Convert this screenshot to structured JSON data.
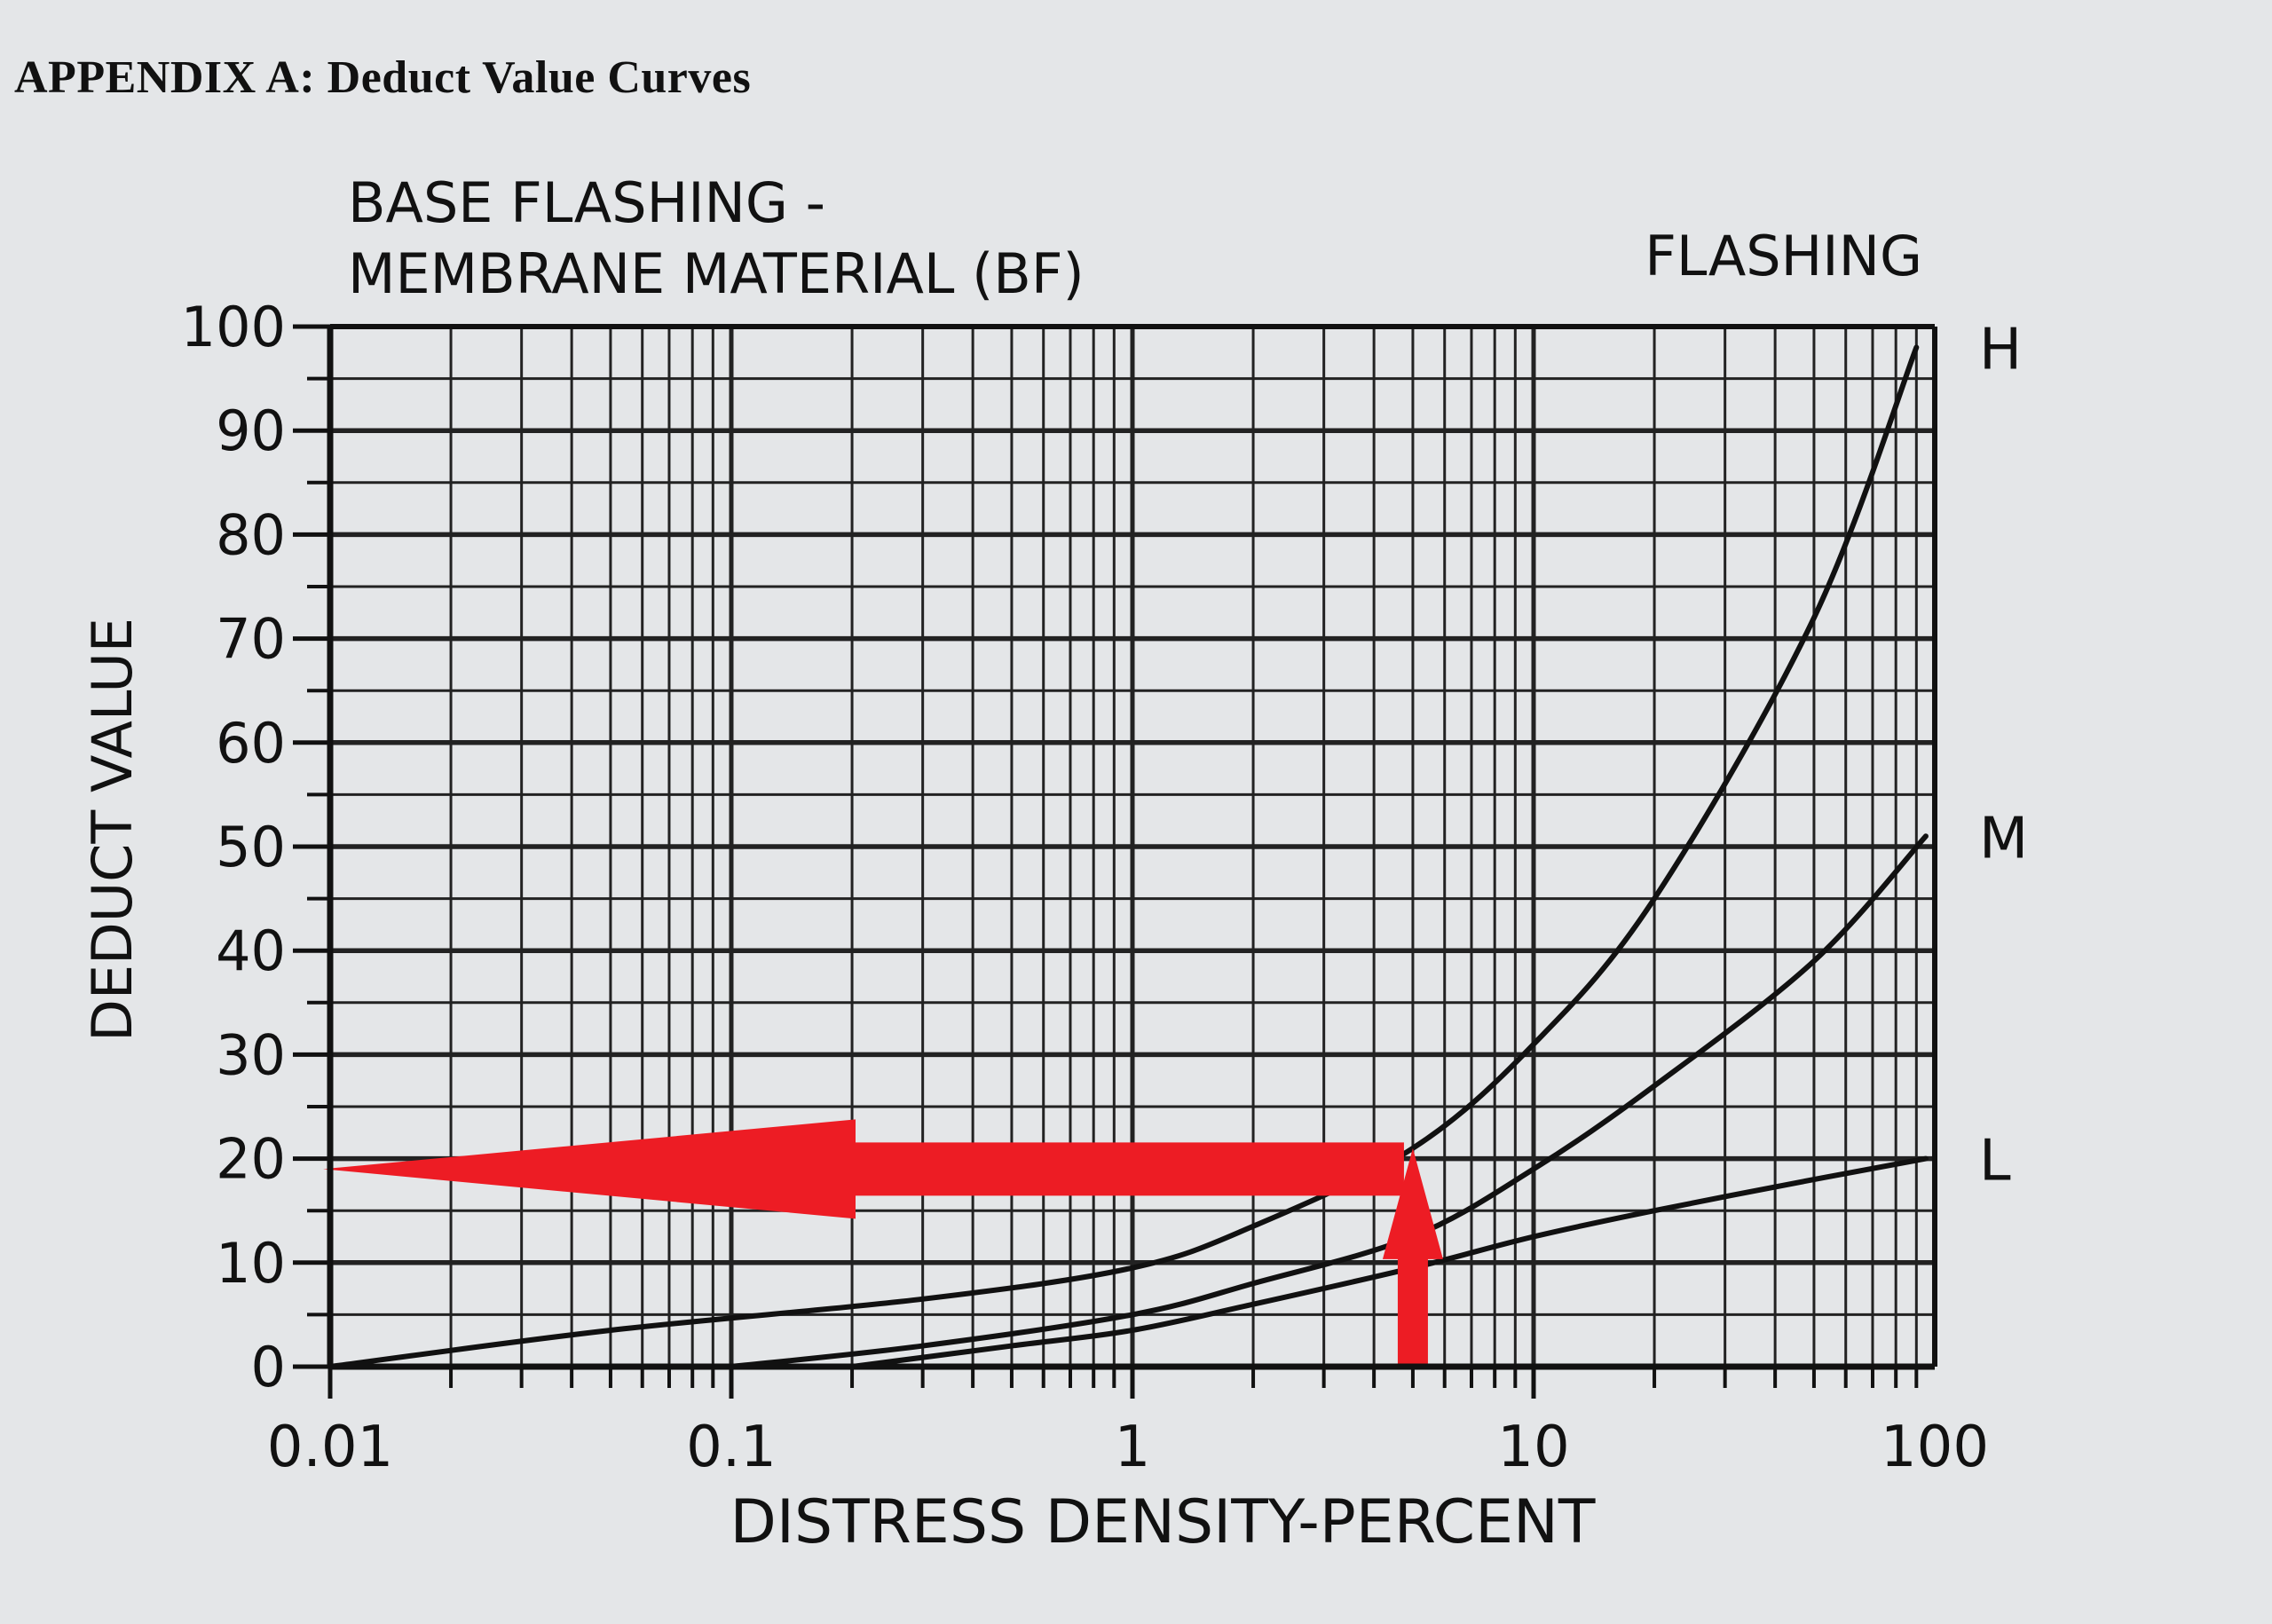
{
  "header": {
    "appendix": "APPENDIX A:  Deduct Value Curves"
  },
  "chart_data": {
    "type": "line",
    "title": "BASE FLASHING - MEMBRANE MATERIAL (BF)",
    "title_lines": [
      "BASE FLASHING -",
      "MEMBRANE MATERIAL (BF)"
    ],
    "category": "FLASHING",
    "xlabel": "DISTRESS DENSITY-PERCENT",
    "ylabel": "DEDUCT VALUE",
    "xscale": "log",
    "xlim": [
      0.01,
      100
    ],
    "ylim": [
      0,
      100
    ],
    "x_tick_labels": [
      "0.01",
      "0.1",
      "1",
      "10",
      "100"
    ],
    "y_tick_labels": [
      "0",
      "10",
      "20",
      "30",
      "40",
      "50",
      "60",
      "70",
      "80",
      "90",
      "100"
    ],
    "grid": true,
    "series": [
      {
        "name": "H",
        "color": "#111111",
        "x": [
          0.01,
          0.05,
          0.3,
          1,
          2,
          5,
          10,
          20,
          50,
          90
        ],
        "y": [
          0,
          3.5,
          6.5,
          9.5,
          13.5,
          21,
          31,
          45,
          72,
          98
        ]
      },
      {
        "name": "M",
        "color": "#111111",
        "x": [
          0.1,
          0.3,
          1,
          2,
          5,
          10,
          20,
          50,
          95
        ],
        "y": [
          0,
          2,
          5,
          8,
          12.5,
          19,
          27,
          39,
          51
        ]
      },
      {
        "name": "L",
        "color": "#111111",
        "x": [
          0.2,
          0.5,
          1,
          2,
          5,
          10,
          20,
          50,
          95
        ],
        "y": [
          0,
          2,
          3.5,
          6,
          9.5,
          12.5,
          15,
          18,
          20
        ]
      }
    ],
    "annotations": [
      {
        "type": "arrow",
        "color": "#ed1c24",
        "from": [
          5,
          0
        ],
        "to": [
          5,
          21
        ]
      },
      {
        "type": "arrow",
        "color": "#ed1c24",
        "from": [
          5,
          19
        ],
        "to": [
          0.01,
          19
        ]
      }
    ]
  }
}
